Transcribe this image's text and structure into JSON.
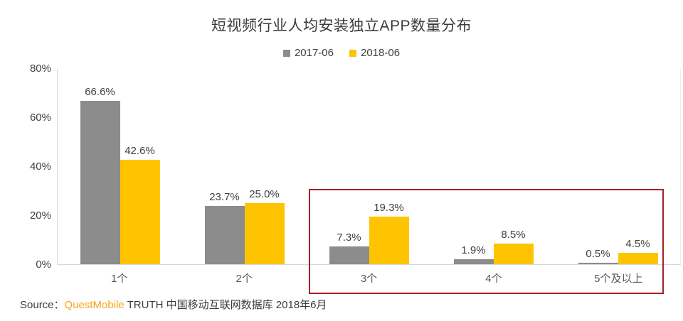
{
  "title": "短视频行业人均安装独立APP数量分布",
  "legend": {
    "items": [
      {
        "label": "2017-06",
        "color": "#8c8c8c"
      },
      {
        "label": "2018-06",
        "color": "#ffc400"
      }
    ]
  },
  "chart_data": {
    "type": "bar",
    "categories": [
      "1个",
      "2个",
      "3个",
      "4个",
      "5个及以上"
    ],
    "series": [
      {
        "name": "2017-06",
        "color": "#8c8c8c",
        "values": [
          66.6,
          23.7,
          7.3,
          1.9,
          0.5
        ]
      },
      {
        "name": "2018-06",
        "color": "#ffc400",
        "values": [
          42.6,
          25.0,
          19.3,
          8.5,
          4.5
        ]
      }
    ],
    "value_labels": [
      [
        "66.6%",
        "42.6%"
      ],
      [
        "23.7%",
        "25.0%"
      ],
      [
        "7.3%",
        "19.3%"
      ],
      [
        "1.9%",
        "8.5%"
      ],
      [
        "0.5%",
        "4.5%"
      ]
    ],
    "title": "短视频行业人均安装独立APP数量分布",
    "xlabel": "",
    "ylabel": "",
    "ylim": [
      0,
      80
    ],
    "yticks": [
      0,
      20,
      40,
      60,
      80
    ],
    "ytick_labels": [
      "0%",
      "20%",
      "40%",
      "60%",
      "80%"
    ],
    "grid": false,
    "legend_position": "top",
    "highlight_box": {
      "categories": [
        "3个",
        "4个",
        "5个及以上"
      ],
      "border_color": "#a52126"
    }
  },
  "source": {
    "prefix": "Source：",
    "brand": "QuestMobile",
    "rest": " TRUTH 中国移动互联网数据库 2018年6月",
    "brand_color": "#f7a21a"
  }
}
